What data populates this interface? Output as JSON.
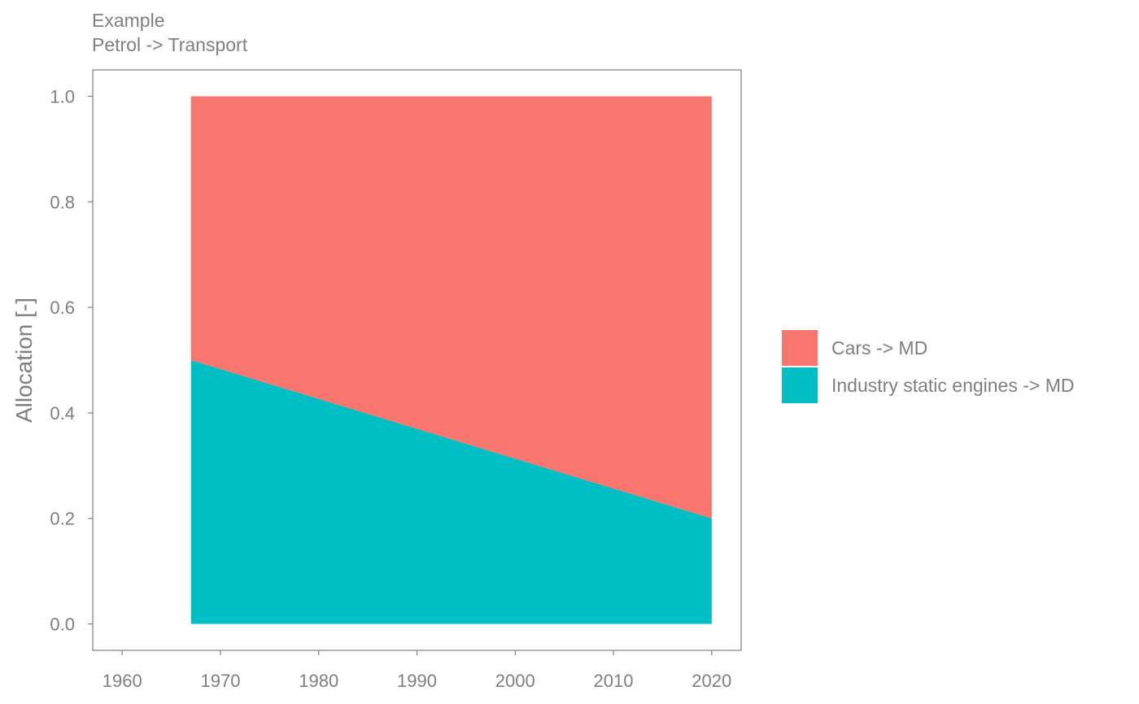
{
  "chart_data": {
    "type": "area",
    "stacked": true,
    "title": "Example",
    "subtitle": "Petrol -> Transport",
    "xlabel": "",
    "ylabel": "Allocation [-]",
    "xlim": [
      1957,
      2023
    ],
    "ylim": [
      -0.05,
      1.05
    ],
    "xticks": [
      1960,
      1970,
      1980,
      1990,
      2000,
      2010,
      2020
    ],
    "yticks": [
      0.0,
      0.2,
      0.4,
      0.6,
      0.8,
      1.0
    ],
    "grid": false,
    "legend_position": "right",
    "x": [
      1967,
      2020
    ],
    "series": [
      {
        "name": "Cars -> MD",
        "values": [
          0.5,
          0.8
        ],
        "color": "#f8766d"
      },
      {
        "name": "Industry static engines -> MD",
        "values": [
          0.5,
          0.2
        ],
        "color": "#00bfc4"
      }
    ]
  }
}
